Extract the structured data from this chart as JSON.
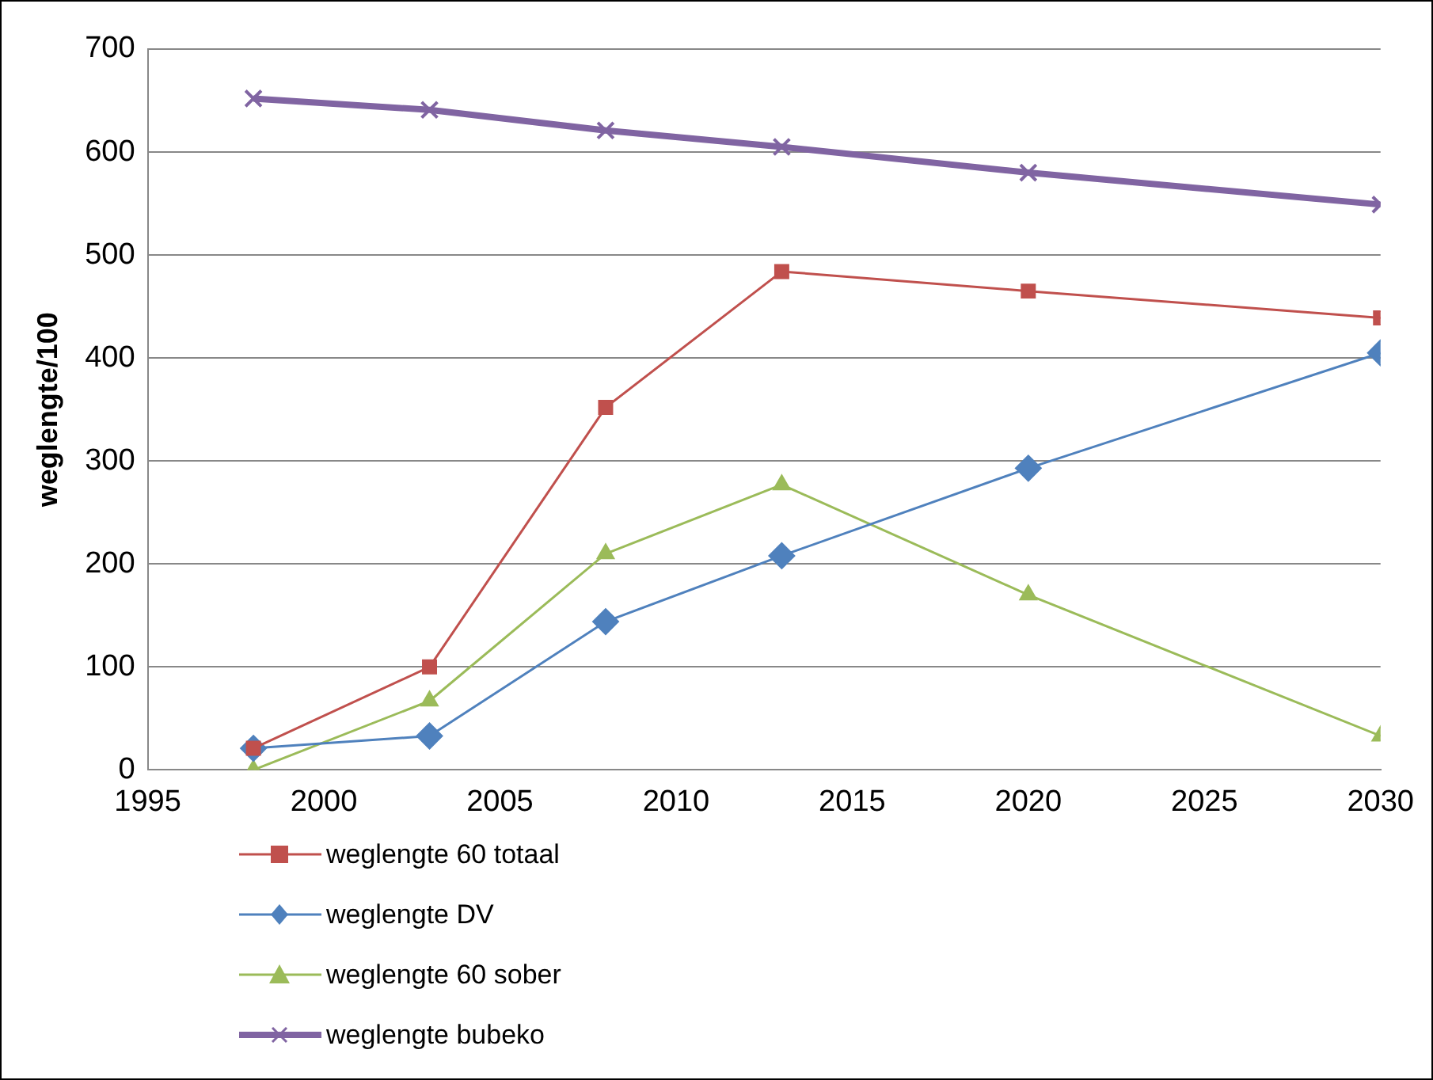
{
  "chart_data": {
    "type": "line",
    "ylabel": "weglengte/100",
    "x": [
      1998,
      2003,
      2008,
      2013,
      2020,
      2030
    ],
    "xlim": [
      1995,
      2030
    ],
    "xticks": [
      1995,
      2000,
      2005,
      2010,
      2015,
      2020,
      2025,
      2030
    ],
    "ylim": [
      0,
      700
    ],
    "yticks": [
      0,
      100,
      200,
      300,
      400,
      500,
      600,
      700
    ],
    "grid": "y",
    "legend": "bottom left",
    "series": [
      {
        "name": "weglengte 60 totaal",
        "color": "#c0504d",
        "marker": "square",
        "values": [
          21,
          100,
          352,
          484,
          465,
          439
        ]
      },
      {
        "name": "weglengte DV",
        "color": "#4f81bd",
        "marker": "diamond",
        "values": [
          21,
          33,
          144,
          208,
          293,
          405
        ]
      },
      {
        "name": "weglengte 60 sober",
        "color": "#9bbb59",
        "marker": "triangle",
        "values": [
          0,
          67,
          210,
          277,
          170,
          33
        ]
      },
      {
        "name": "weglengte bubeko",
        "color": "#8064a2",
        "marker": "cross",
        "values": [
          652,
          641,
          621,
          605,
          580,
          549
        ]
      }
    ]
  }
}
